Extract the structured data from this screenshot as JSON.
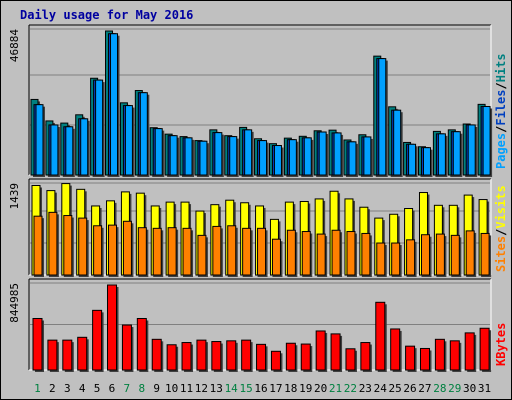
{
  "title": "Daily usage for May 2016",
  "colors": {
    "frame": "#c0c0c0",
    "plot": "#c0c0c0",
    "title": "#0000a0",
    "pages": "#00a0ff",
    "files": "#0040c0",
    "hits": "#008080",
    "sites": "#ff8000",
    "visits": "#ffff00",
    "kbytes": "#ff0000",
    "weekend_label": "#008040",
    "weekday_label": "#000000"
  },
  "chart_data": [
    {
      "type": "bar",
      "name": "hits_files_pages",
      "categories": [
        "1",
        "2",
        "3",
        "4",
        "5",
        "6",
        "7",
        "8",
        "9",
        "10",
        "11",
        "12",
        "13",
        "14",
        "15",
        "16",
        "17",
        "18",
        "19",
        "20",
        "21",
        "22",
        "23",
        "24",
        "25",
        "26",
        "27",
        "28",
        "29",
        "30",
        "31"
      ],
      "weekend_days": [
        "1",
        "7",
        "8",
        "14",
        "15",
        "21",
        "22",
        "28",
        "29"
      ],
      "ymax": 46884,
      "y_tick_label": "46884",
      "legend": [
        "Pages",
        "/",
        "Files",
        "/",
        "Hits"
      ],
      "series": [
        {
          "name": "Hits",
          "values": [
            24600,
            17600,
            16900,
            19600,
            31500,
            46884,
            23500,
            27500,
            15400,
            13300,
            12500,
            11200,
            14700,
            12800,
            15500,
            11800,
            10200,
            12000,
            12600,
            14400,
            14600,
            11400,
            13100,
            38700,
            22200,
            10600,
            9200,
            14200,
            14700,
            16600,
            23000
          ]
        },
        {
          "name": "Files",
          "values": [
            22900,
            16300,
            15700,
            18300,
            30900,
            46000,
            22600,
            26800,
            15100,
            12800,
            12100,
            11000,
            13800,
            12500,
            14700,
            11200,
            9600,
            11500,
            12100,
            14000,
            13700,
            10800,
            12400,
            37900,
            21100,
            10000,
            8900,
            13400,
            14100,
            16300,
            22300
          ]
        },
        {
          "name": "Pages",
          "values": [
            22900,
            16300,
            15700,
            18300,
            30900,
            46000,
            22600,
            26800,
            15100,
            12800,
            12100,
            11000,
            13800,
            12500,
            14700,
            11200,
            9600,
            11500,
            12100,
            14000,
            13700,
            10800,
            12400,
            37900,
            21100,
            10000,
            8900,
            13400,
            14100,
            16300,
            22300
          ]
        }
      ]
    },
    {
      "type": "bar",
      "name": "visits_sites",
      "categories": [
        "1",
        "2",
        "3",
        "4",
        "5",
        "6",
        "7",
        "8",
        "9",
        "10",
        "11",
        "12",
        "13",
        "14",
        "15",
        "16",
        "17",
        "18",
        "19",
        "20",
        "21",
        "22",
        "23",
        "24",
        "25",
        "26",
        "27",
        "28",
        "29",
        "30",
        "31"
      ],
      "ymax": 1439,
      "y_tick_label": "1439",
      "legend": [
        "Sites",
        "/",
        "Visits"
      ],
      "series": [
        {
          "name": "Visits",
          "values": [
            1400,
            1320,
            1430,
            1340,
            1080,
            1160,
            1300,
            1280,
            1080,
            1140,
            1140,
            1000,
            1100,
            1170,
            1130,
            1080,
            870,
            1140,
            1150,
            1190,
            1310,
            1190,
            1060,
            890,
            950,
            1040,
            1290,
            1090,
            1090,
            1250,
            1180
          ]
        },
        {
          "name": "Sites",
          "values": [
            920,
            980,
            930,
            890,
            770,
            780,
            840,
            740,
            730,
            740,
            730,
            620,
            760,
            770,
            730,
            730,
            560,
            700,
            680,
            640,
            700,
            680,
            650,
            500,
            500,
            550,
            630,
            640,
            620,
            690,
            650
          ]
        }
      ]
    },
    {
      "type": "bar",
      "name": "kbytes",
      "categories": [
        "1",
        "2",
        "3",
        "4",
        "5",
        "6",
        "7",
        "8",
        "9",
        "10",
        "11",
        "12",
        "13",
        "14",
        "15",
        "16",
        "17",
        "18",
        "19",
        "20",
        "21",
        "22",
        "23",
        "24",
        "25",
        "26",
        "27",
        "28",
        "29",
        "30",
        "31"
      ],
      "ymax": 844985,
      "y_tick_label": "844985",
      "legend": [
        "KBytes"
      ],
      "series": [
        {
          "name": "KBytes",
          "values": [
            512000,
            297000,
            297000,
            325000,
            593000,
            844985,
            447000,
            512000,
            305000,
            251000,
            273000,
            297000,
            283000,
            290000,
            297000,
            255000,
            186000,
            266000,
            258000,
            388000,
            359000,
            211000,
            273000,
            673000,
            408000,
            237000,
            214000,
            305000,
            290000,
            369000,
            415000
          ]
        }
      ]
    }
  ]
}
